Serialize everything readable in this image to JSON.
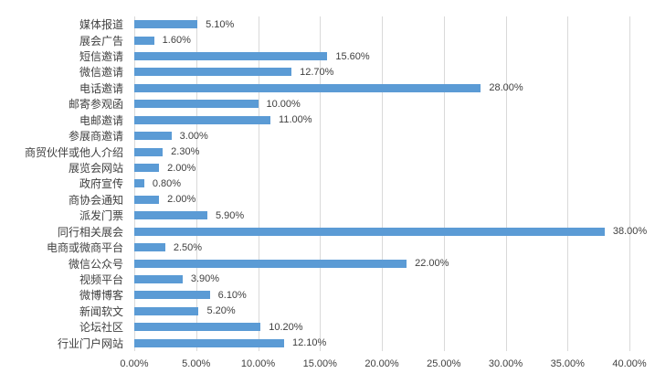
{
  "chart_data": {
    "type": "bar",
    "orientation": "horizontal",
    "title": "",
    "xlabel": "",
    "ylabel": "",
    "xlim": [
      0,
      40
    ],
    "grid": true,
    "legend": false,
    "categories": [
      "媒体报道",
      "展会广告",
      "短信邀请",
      "微信邀请",
      "电话邀请",
      "邮寄参观函",
      "电邮邀请",
      "参展商邀请",
      "商贸伙伴或他人介绍",
      "展览会网站",
      "政府宣传",
      "商协会通知",
      "派发门票",
      "同行相关展会",
      "电商或微商平台",
      "微信公众号",
      "视频平台",
      "微博博客",
      "新闻软文",
      "论坛社区",
      "行业门户网站"
    ],
    "values": [
      5.1,
      1.6,
      15.6,
      12.7,
      28.0,
      10.0,
      11.0,
      3.0,
      2.3,
      2.0,
      0.8,
      2.0,
      5.9,
      38.0,
      2.5,
      22.0,
      3.9,
      6.1,
      5.2,
      10.2,
      12.1
    ],
    "data_labels": [
      "5.10%",
      "1.60%",
      "15.60%",
      "12.70%",
      "28.00%",
      "10.00%",
      "11.00%",
      "3.00%",
      "2.30%",
      "2.00%",
      "0.80%",
      "2.00%",
      "5.90%",
      "38.00%",
      "2.50%",
      "22.00%",
      "3.90%",
      "6.10%",
      "5.20%",
      "10.20%",
      "12.10%"
    ],
    "x_ticks": [
      "0.00%",
      "5.00%",
      "10.00%",
      "15.00%",
      "20.00%",
      "25.00%",
      "30.00%",
      "35.00%",
      "40.00%"
    ],
    "colors": {
      "bar": "#5B9BD5",
      "gridline": "#D9D9D9",
      "text": "#404040",
      "background": "#FFFFFF"
    }
  }
}
